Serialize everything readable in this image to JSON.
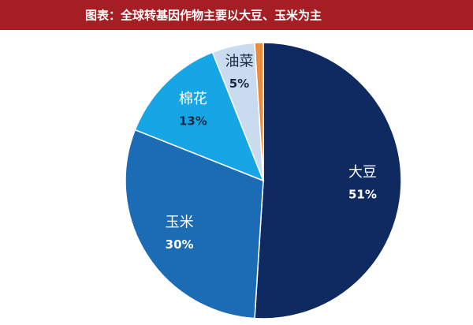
{
  "chart_data": {
    "type": "pie",
    "title": "图表：全球转基因作物主要以大豆、玉米为主",
    "categories": [
      "大豆",
      "玉米",
      "棉花",
      "油菜",
      null
    ],
    "values": [
      51,
      30,
      13,
      5,
      1
    ],
    "value_labels": [
      "51%",
      "30%",
      "13%",
      "5%",
      null
    ],
    "colors": [
      "#0f2a60",
      "#1c6cb5",
      "#16a6e6",
      "#c9dbee",
      "#e98b3c"
    ]
  }
}
